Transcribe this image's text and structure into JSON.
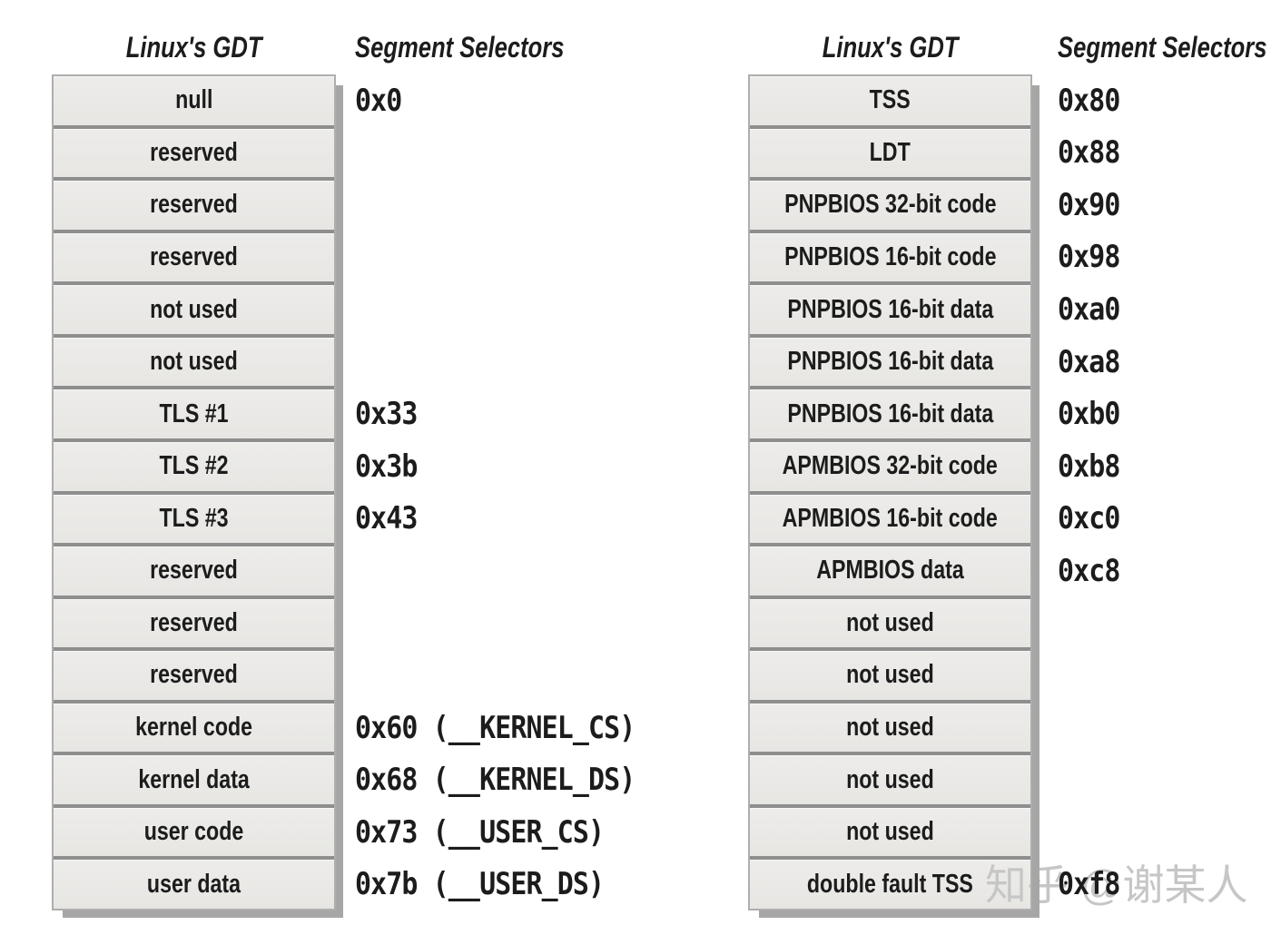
{
  "watermark": "知乎 @谢某人",
  "panels": {
    "left": {
      "gdt_title": "Linux's GDT",
      "selectors_title": "Segment Selectors",
      "rows": [
        {
          "label": "null",
          "selector": "0x0"
        },
        {
          "label": "reserved",
          "selector": ""
        },
        {
          "label": "reserved",
          "selector": ""
        },
        {
          "label": "reserved",
          "selector": ""
        },
        {
          "label": "not used",
          "selector": ""
        },
        {
          "label": "not used",
          "selector": ""
        },
        {
          "label": "TLS #1",
          "selector": "0x33"
        },
        {
          "label": "TLS #2",
          "selector": "0x3b"
        },
        {
          "label": "TLS #3",
          "selector": "0x43"
        },
        {
          "label": "reserved",
          "selector": ""
        },
        {
          "label": "reserved",
          "selector": ""
        },
        {
          "label": "reserved",
          "selector": ""
        },
        {
          "label": "kernel code",
          "selector": "0x60 (__KERNEL_CS)"
        },
        {
          "label": "kernel data",
          "selector": "0x68 (__KERNEL_DS)"
        },
        {
          "label": "user code",
          "selector": "0x73 (__USER_CS)"
        },
        {
          "label": "user data",
          "selector": "0x7b (__USER_DS)"
        }
      ]
    },
    "right": {
      "gdt_title": "Linux's GDT",
      "selectors_title": "Segment Selectors",
      "rows": [
        {
          "label": "TSS",
          "selector": "0x80"
        },
        {
          "label": "LDT",
          "selector": "0x88"
        },
        {
          "label": "PNPBIOS 32-bit code",
          "selector": "0x90"
        },
        {
          "label": "PNPBIOS 16-bit code",
          "selector": "0x98"
        },
        {
          "label": "PNPBIOS 16-bit data",
          "selector": "0xa0"
        },
        {
          "label": "PNPBIOS 16-bit data",
          "selector": "0xa8"
        },
        {
          "label": "PNPBIOS 16-bit data",
          "selector": "0xb0"
        },
        {
          "label": "APMBIOS 32-bit code",
          "selector": "0xb8"
        },
        {
          "label": "APMBIOS 16-bit code",
          "selector": "0xc0"
        },
        {
          "label": "APMBIOS data",
          "selector": "0xc8"
        },
        {
          "label": "not used",
          "selector": ""
        },
        {
          "label": "not used",
          "selector": ""
        },
        {
          "label": "not used",
          "selector": ""
        },
        {
          "label": "not used",
          "selector": ""
        },
        {
          "label": "not used",
          "selector": ""
        },
        {
          "label": "double fault TSS",
          "selector": "0xf8"
        }
      ]
    },
    "colors": {
      "row_fill": "#e9e8e5",
      "separator": "#8e8e8e",
      "table_border": "#aeaeae",
      "shadow": "#a6a6a6",
      "text": "#1c1c1c",
      "watermark": "#c6c6c6"
    }
  }
}
